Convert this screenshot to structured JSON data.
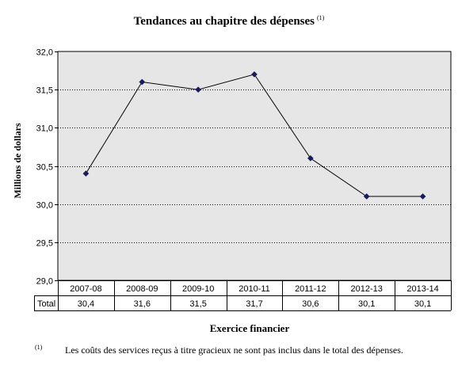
{
  "chart_data": {
    "type": "line",
    "title": "Tendances  au chapitre des dépenses",
    "title_note": "(1)",
    "xlabel": "Exercice financier",
    "ylabel": "Millions de dollars",
    "categories": [
      "2007-08",
      "2008-09",
      "2009-10",
      "2010-11",
      "2011-12",
      "2012-13",
      "2013-14"
    ],
    "series": [
      {
        "name": "Total",
        "values": [
          30.4,
          31.6,
          31.5,
          31.7,
          30.6,
          30.1,
          30.1
        ],
        "display": [
          "30,4",
          "31,6",
          "31,5",
          "31,7",
          "30,6",
          "30,1",
          "30,1"
        ]
      }
    ],
    "ylim": [
      29.0,
      32.0
    ],
    "yticks": [
      29.0,
      29.5,
      30.0,
      30.5,
      31.0,
      31.5,
      32.0
    ],
    "ytick_labels": [
      "29,0",
      "29,5",
      "30,0",
      "30,5",
      "31,0",
      "31,5",
      "32,0"
    ],
    "grid": true,
    "data_table": true,
    "colors": {
      "plot_bg": "#e6e6e6",
      "line": "#000000",
      "marker": "#1a1a5e"
    }
  },
  "footnote": {
    "mark": "(1)",
    "text": "Les coûts des services reçus à titre gracieux ne sont pas inclus dans le total des dépenses."
  }
}
